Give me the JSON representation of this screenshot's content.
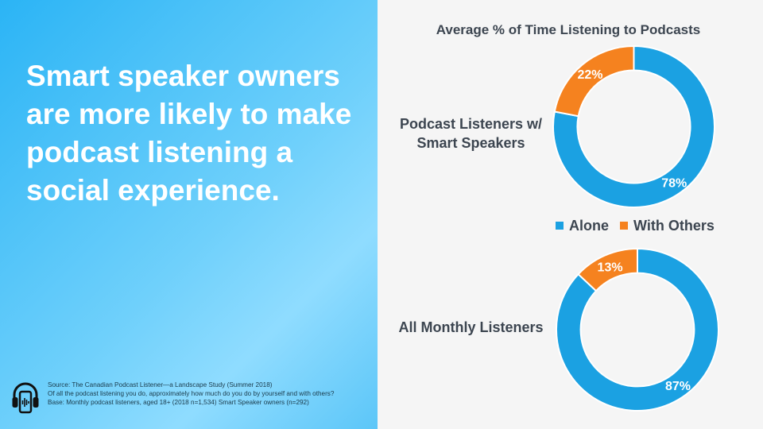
{
  "headline": "Smart speaker owners are more likely to make podcast listening a social experience.",
  "source": {
    "line1": "Source:  The Canadian Podcast Listener—a Landscape Study (Summer 2018)",
    "line2": "Of all the podcast listening you do, approximately how much do you do by yourself and with others?",
    "line3": "Base: Monthly podcast listeners, aged 18+ (2018 n=1,534) Smart Speaker owners (n=292)"
  },
  "icon": "podcast-headphones-phone-icon",
  "colors": {
    "alone": "#1ba1e2",
    "with_others": "#f5821f",
    "left_panel": "#4fc3f7",
    "text_dark": "#3c4550"
  },
  "chart_data": {
    "type": "pie",
    "title": "Average % of Time Listening to Podcasts",
    "legend": [
      "Alone",
      "With Others"
    ],
    "legend_position": "center",
    "charts": [
      {
        "label": "Podcast Listeners w/ Smart Speakers",
        "slices": [
          {
            "name": "Alone",
            "value": 78,
            "label": "78%"
          },
          {
            "name": "With Others",
            "value": 22,
            "label": "22%"
          }
        ]
      },
      {
        "label": "All Monthly Listeners",
        "slices": [
          {
            "name": "Alone",
            "value": 87,
            "label": "87%"
          },
          {
            "name": "With Others",
            "value": 13,
            "label": "13%"
          }
        ]
      }
    ]
  }
}
